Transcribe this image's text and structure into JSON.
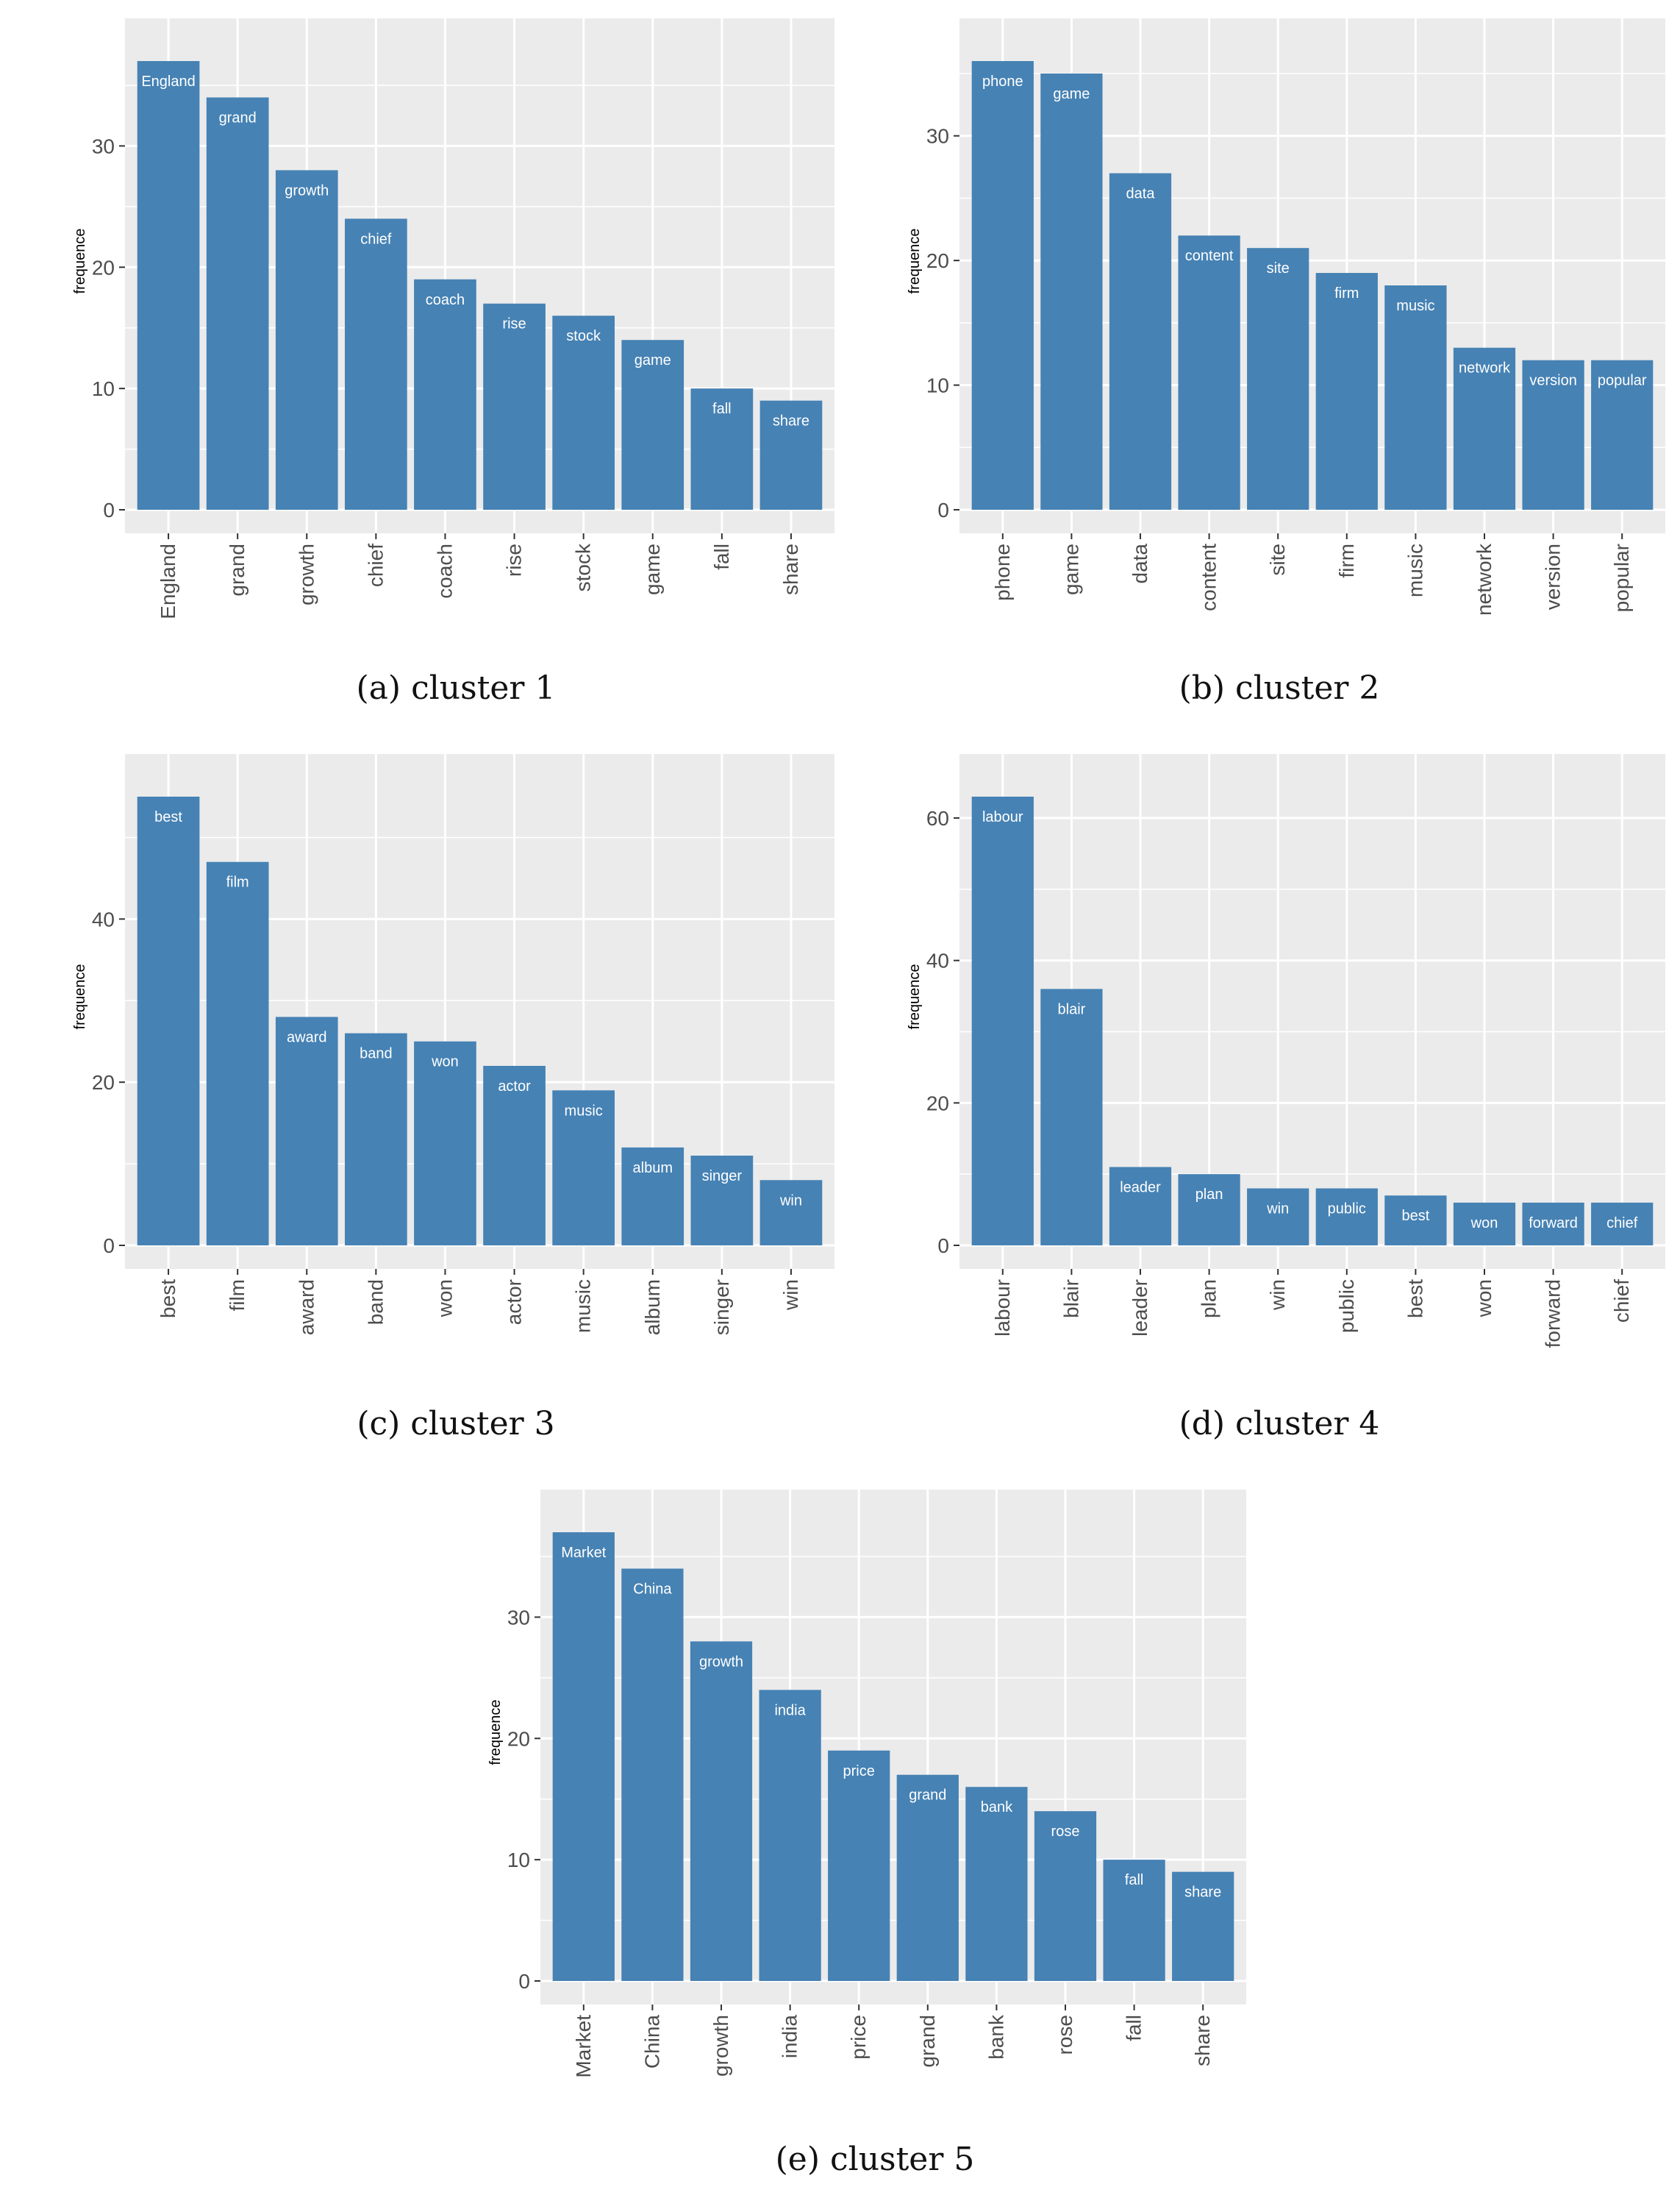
{
  "colors": {
    "bar": "#4682B4",
    "panel_bg": "#EBEBEB",
    "grid": "#FFFFFF",
    "tick_text": "#4D4D4D",
    "bar_label": "#FFFFFF"
  },
  "chart_data": [
    {
      "type": "bar",
      "caption": "(a)  cluster 1",
      "xlabel": "",
      "ylabel": "frequence",
      "ylim": [
        0,
        37
      ],
      "yticks": [
        0,
        10,
        20,
        30
      ],
      "grid": true,
      "categories": [
        "England",
        "grand",
        "growth",
        "chief",
        "coach",
        "rise",
        "stock",
        "game",
        "fall",
        "share"
      ],
      "values": [
        37,
        34,
        28,
        24,
        19,
        17,
        16,
        14,
        10,
        9
      ]
    },
    {
      "type": "bar",
      "caption": "(b)  cluster 2",
      "xlabel": "",
      "ylabel": "frequence",
      "ylim": [
        0,
        36
      ],
      "yticks": [
        0,
        10,
        20,
        30
      ],
      "grid": true,
      "categories": [
        "phone",
        "game",
        "data",
        "content",
        "site",
        "firm",
        "music",
        "network",
        "version",
        "popular"
      ],
      "values": [
        36,
        35,
        27,
        22,
        21,
        19,
        18,
        13,
        12,
        12
      ]
    },
    {
      "type": "bar",
      "caption": "(c)  cluster 3",
      "xlabel": "",
      "ylabel": "frequence",
      "ylim": [
        0,
        55
      ],
      "yticks": [
        0,
        20,
        40
      ],
      "grid": true,
      "categories": [
        "best",
        "film",
        "award",
        "band",
        "won",
        "actor",
        "music",
        "album",
        "singer",
        "win"
      ],
      "values": [
        55,
        47,
        28,
        26,
        25,
        22,
        19,
        12,
        11,
        8
      ]
    },
    {
      "type": "bar",
      "caption": "(d)  cluster 4",
      "xlabel": "",
      "ylabel": "frequence",
      "ylim": [
        0,
        63
      ],
      "yticks": [
        0,
        20,
        40,
        60
      ],
      "grid": true,
      "categories": [
        "labour",
        "blair",
        "leader",
        "plan",
        "win",
        "public",
        "best",
        "won",
        "forward",
        "chief"
      ],
      "values": [
        63,
        36,
        11,
        10,
        8,
        8,
        7,
        6,
        6,
        6
      ]
    },
    {
      "type": "bar",
      "caption": "(e)  cluster 5",
      "xlabel": "",
      "ylabel": "frequence",
      "ylim": [
        0,
        37
      ],
      "yticks": [
        0,
        10,
        20,
        30
      ],
      "grid": true,
      "categories": [
        "Market",
        "China",
        "growth",
        "india",
        "price",
        "grand",
        "bank",
        "rose",
        "fall",
        "share"
      ],
      "values": [
        37,
        34,
        28,
        24,
        19,
        17,
        16,
        14,
        10,
        9
      ]
    }
  ]
}
